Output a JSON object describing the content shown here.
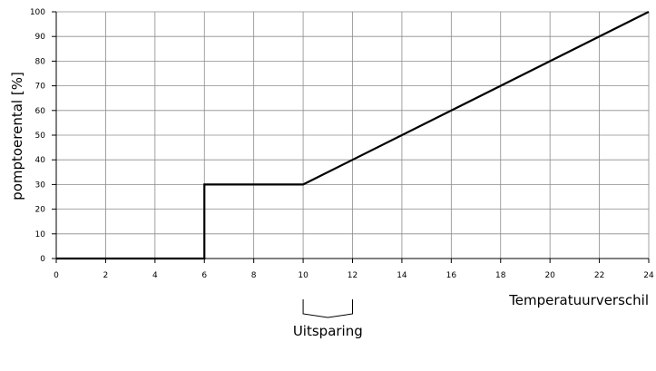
{
  "chart_data": {
    "type": "line",
    "title": "",
    "xlabel": "Temperatuurverschil",
    "ylabel": "pomptoerental [%]",
    "xlim": [
      0,
      24
    ],
    "ylim": [
      0,
      100
    ],
    "xticks": [
      0,
      2,
      4,
      6,
      8,
      10,
      12,
      14,
      16,
      18,
      20,
      22,
      24
    ],
    "yticks": [
      0,
      10,
      20,
      30,
      40,
      50,
      60,
      70,
      80,
      90,
      100
    ],
    "grid": true,
    "series": [
      {
        "x": [
          0,
          6,
          6,
          10,
          24
        ],
        "y": [
          0,
          0,
          30,
          30,
          100
        ]
      }
    ],
    "annotations": [
      {
        "text": "Uitsparing",
        "x_range": [
          10,
          12
        ]
      }
    ]
  }
}
